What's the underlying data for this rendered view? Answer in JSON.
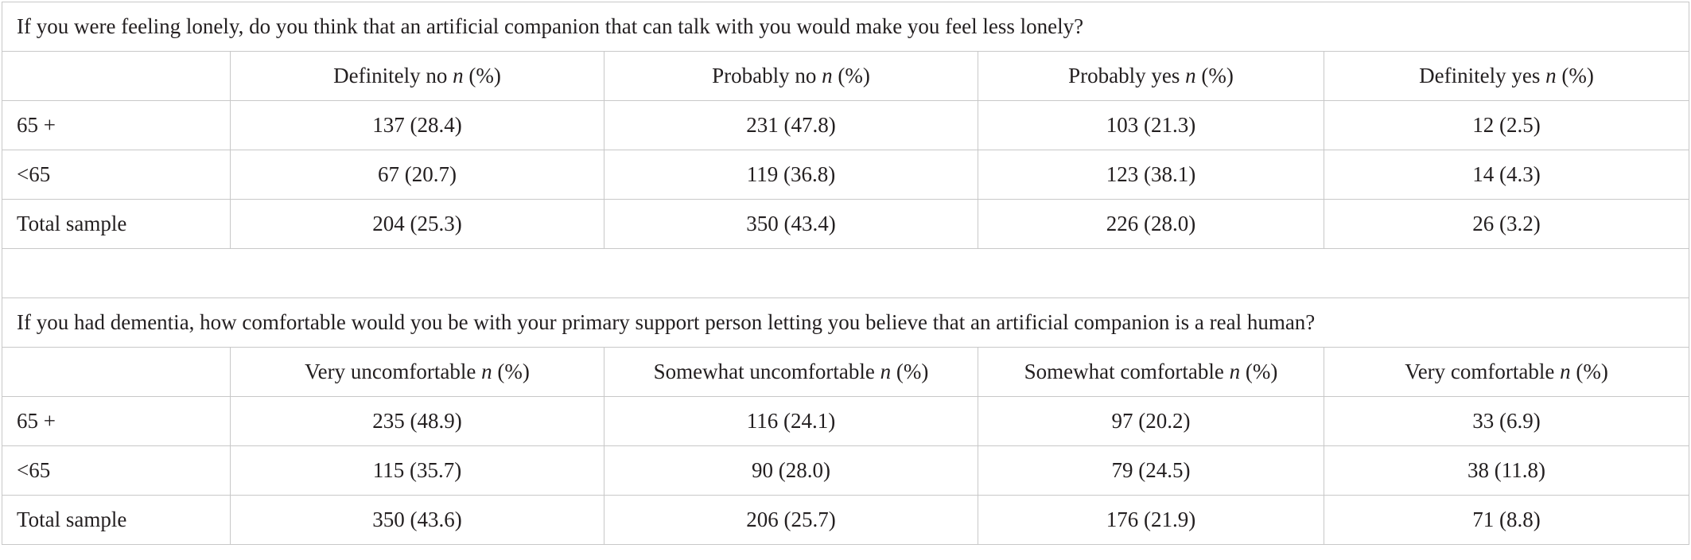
{
  "sections": [
    {
      "question": "If you were feeling lonely, do you think that an artificial companion that can talk with you would make you feel less lonely?",
      "columns": [
        {
          "label": "Definitely no",
          "stat_n": "n",
          "stat_pct": "(%)"
        },
        {
          "label": "Probably no",
          "stat_n": "n",
          "stat_pct": "(%)"
        },
        {
          "label": "Probably yes",
          "stat_n": "n",
          "stat_pct": "(%)"
        },
        {
          "label": "Definitely yes",
          "stat_n": "n",
          "stat_pct": "(%)"
        }
      ],
      "rows": [
        {
          "label": "65 +",
          "values": [
            "137 (28.4)",
            "231 (47.8)",
            "103 (21.3)",
            "12 (2.5)"
          ]
        },
        {
          "label": "<65",
          "values": [
            "67 (20.7)",
            "119 (36.8)",
            "123 (38.1)",
            "14 (4.3)"
          ]
        },
        {
          "label": "Total sample",
          "values": [
            "204 (25.3)",
            "350 (43.4)",
            "226 (28.0)",
            "26 (3.2)"
          ]
        }
      ]
    },
    {
      "question": "If you had dementia, how comfortable would you be with your primary support person letting you believe that an artificial companion is a real human?",
      "columns": [
        {
          "label": "Very uncomfortable",
          "stat_n": "n",
          "stat_pct": "(%)"
        },
        {
          "label": "Somewhat uncomfortable",
          "stat_n": "n",
          "stat_pct": "(%)"
        },
        {
          "label": "Somewhat comfortable",
          "stat_n": "n",
          "stat_pct": "(%)"
        },
        {
          "label": "Very comfortable",
          "stat_n": "n",
          "stat_pct": "(%)"
        }
      ],
      "rows": [
        {
          "label": "65 +",
          "values": [
            "235 (48.9)",
            "116 (24.1)",
            "97 (20.2)",
            "33 (6.9)"
          ]
        },
        {
          "label": "<65",
          "values": [
            "115 (35.7)",
            "90 (28.0)",
            "79 (24.5)",
            "38 (11.8)"
          ]
        },
        {
          "label": "Total sample",
          "values": [
            "350 (43.6)",
            "206 (25.7)",
            "176 (21.9)",
            "71 (8.8)"
          ]
        }
      ]
    }
  ]
}
